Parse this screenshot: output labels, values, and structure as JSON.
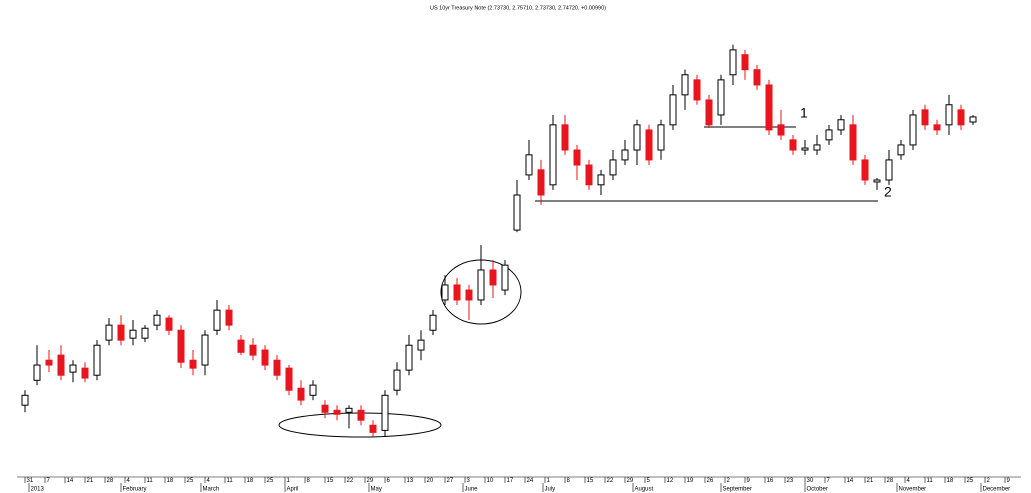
{
  "chart_data": {
    "type": "candlestick",
    "title": "US 10yr Treasury Note (2.73730, 2.75710, 2.73730, 2.74720, +0.00990)",
    "x": [
      0,
      3,
      6,
      9,
      12,
      15,
      18,
      21,
      24,
      27,
      30,
      33,
      36,
      39,
      42,
      45,
      48,
      51,
      54,
      57,
      60,
      63,
      66,
      69,
      72,
      75,
      78,
      81,
      84,
      87,
      90,
      93,
      96,
      99,
      102,
      105,
      108,
      111,
      114,
      117,
      120,
      123,
      126,
      129,
      132,
      135,
      138,
      141,
      144,
      147,
      150,
      153,
      156,
      159,
      162,
      165,
      168,
      171,
      174,
      177,
      180,
      183,
      186,
      189,
      192,
      195,
      198,
      201,
      204,
      207,
      210,
      213,
      216,
      219,
      222,
      225,
      228,
      231,
      234,
      237
    ],
    "open": [
      1.716,
      1.804,
      1.875,
      1.893,
      1.833,
      1.847,
      1.822,
      1.946,
      1.999,
      1.953,
      1.953,
      1.999,
      2.024,
      1.981,
      1.875,
      1.858,
      1.981,
      2.052,
      1.946,
      1.928,
      1.911,
      1.875,
      1.847,
      1.776,
      1.751,
      1.716,
      1.698,
      1.691,
      1.698,
      1.645,
      1.627,
      1.769,
      1.84,
      1.911,
      1.981,
      2.088,
      2.141,
      2.123,
      2.088,
      2.194,
      2.123,
      2.335,
      2.53,
      2.548,
      2.495,
      2.707,
      2.618,
      2.565,
      2.495,
      2.53,
      2.583,
      2.618,
      2.689,
      2.618,
      2.707,
      2.813,
      2.866,
      2.795,
      2.742,
      2.884,
      2.955,
      2.902,
      2.848,
      2.707,
      2.654,
      2.618,
      2.618,
      2.654,
      2.689,
      2.707,
      2.583,
      2.505,
      2.512,
      2.601,
      2.636,
      2.76,
      2.707,
      2.707,
      2.76,
      2.717
    ],
    "high": [
      1.769,
      1.928,
      1.911,
      1.928,
      1.875,
      1.868,
      1.946,
      2.024,
      2.034,
      2.017,
      1.999,
      2.052,
      2.034,
      1.999,
      1.911,
      1.981,
      2.088,
      2.07,
      1.964,
      1.953,
      1.928,
      1.893,
      1.858,
      1.804,
      1.804,
      1.734,
      1.716,
      1.716,
      1.716,
      1.663,
      1.769,
      1.868,
      1.964,
      1.981,
      2.052,
      2.176,
      2.165,
      2.141,
      2.282,
      2.229,
      2.229,
      2.512,
      2.654,
      2.583,
      2.742,
      2.742,
      2.636,
      2.583,
      2.548,
      2.618,
      2.654,
      2.725,
      2.707,
      2.725,
      2.848,
      2.902,
      2.884,
      2.813,
      2.884,
      2.99,
      2.972,
      2.919,
      2.866,
      2.76,
      2.671,
      2.654,
      2.671,
      2.707,
      2.742,
      2.742,
      2.601,
      2.519,
      2.618,
      2.654,
      2.76,
      2.778,
      2.725,
      2.813,
      2.778,
      2.742
    ],
    "low": [
      1.691,
      1.787,
      1.833,
      1.804,
      1.797,
      1.797,
      1.804,
      1.928,
      1.928,
      1.928,
      1.939,
      1.981,
      1.964,
      1.847,
      1.822,
      1.822,
      1.964,
      1.981,
      1.893,
      1.875,
      1.84,
      1.804,
      1.751,
      1.716,
      1.734,
      1.67,
      1.663,
      1.634,
      1.645,
      1.606,
      1.606,
      1.751,
      1.822,
      1.875,
      1.964,
      2.07,
      2.07,
      2.017,
      2.07,
      2.095,
      2.105,
      2.328,
      2.512,
      2.424,
      2.477,
      2.601,
      2.512,
      2.477,
      2.459,
      2.512,
      2.565,
      2.565,
      2.565,
      2.583,
      2.689,
      2.76,
      2.778,
      2.696,
      2.707,
      2.848,
      2.866,
      2.831,
      2.671,
      2.654,
      2.601,
      2.601,
      2.601,
      2.636,
      2.671,
      2.565,
      2.495,
      2.477,
      2.495,
      2.583,
      2.618,
      2.689,
      2.671,
      2.671,
      2.689,
      2.707
    ],
    "close": [
      1.751,
      1.858,
      1.858,
      1.822,
      1.858,
      1.812,
      1.928,
      1.999,
      1.946,
      1.981,
      1.988,
      2.034,
      1.981,
      1.868,
      1.847,
      1.964,
      2.052,
      1.999,
      1.903,
      1.893,
      1.858,
      1.822,
      1.769,
      1.734,
      1.787,
      1.691,
      1.684,
      1.705,
      1.663,
      1.62,
      1.751,
      1.84,
      1.928,
      1.946,
      2.034,
      2.141,
      2.088,
      2.088,
      2.194,
      2.141,
      2.211,
      2.459,
      2.601,
      2.459,
      2.707,
      2.618,
      2.565,
      2.495,
      2.53,
      2.583,
      2.618,
      2.707,
      2.583,
      2.707,
      2.813,
      2.884,
      2.795,
      2.707,
      2.866,
      2.972,
      2.902,
      2.848,
      2.689,
      2.671,
      2.618,
      2.625,
      2.636,
      2.689,
      2.725,
      2.583,
      2.512,
      2.512,
      2.583,
      2.636,
      2.742,
      2.707,
      2.689,
      2.778,
      2.707,
      2.735
    ],
    "up_color": "#000000",
    "down_color": "#e8141e",
    "xlim": [
      -2,
      249
    ],
    "ylim": [
      1.54,
      3.12
    ],
    "xticks": [
      {
        "value": 0,
        "label": "31"
      },
      {
        "value": 5,
        "label": "7"
      },
      {
        "value": 10,
        "label": "14"
      },
      {
        "value": 15,
        "label": "21"
      },
      {
        "value": 20,
        "label": "28"
      },
      {
        "value": 25,
        "label": "4"
      },
      {
        "value": 30,
        "label": "11"
      },
      {
        "value": 35,
        "label": "18"
      },
      {
        "value": 40,
        "label": "25"
      },
      {
        "value": 45,
        "label": "4"
      },
      {
        "value": 50,
        "label": "11"
      },
      {
        "value": 55,
        "label": "18"
      },
      {
        "value": 60,
        "label": "25"
      },
      {
        "value": 65,
        "label": "1"
      },
      {
        "value": 70,
        "label": "8"
      },
      {
        "value": 75,
        "label": "15"
      },
      {
        "value": 80,
        "label": "22"
      },
      {
        "value": 85,
        "label": "29"
      },
      {
        "value": 90,
        "label": "6"
      },
      {
        "value": 95,
        "label": "13"
      },
      {
        "value": 100,
        "label": "20"
      },
      {
        "value": 105,
        "label": "27"
      },
      {
        "value": 110,
        "label": "3"
      },
      {
        "value": 115,
        "label": "10"
      },
      {
        "value": 120,
        "label": "17"
      },
      {
        "value": 125,
        "label": "24"
      },
      {
        "value": 130,
        "label": "1"
      },
      {
        "value": 135,
        "label": "8"
      },
      {
        "value": 140,
        "label": "15"
      },
      {
        "value": 145,
        "label": "22"
      },
      {
        "value": 150,
        "label": "29"
      },
      {
        "value": 155,
        "label": "5"
      },
      {
        "value": 160,
        "label": "12"
      },
      {
        "value": 165,
        "label": "19"
      },
      {
        "value": 170,
        "label": "26"
      },
      {
        "value": 175,
        "label": "2"
      },
      {
        "value": 180,
        "label": "9"
      },
      {
        "value": 185,
        "label": "16"
      },
      {
        "value": 190,
        "label": "23"
      },
      {
        "value": 195,
        "label": "30"
      },
      {
        "value": 200,
        "label": "7"
      },
      {
        "value": 205,
        "label": "14"
      },
      {
        "value": 210,
        "label": "21"
      },
      {
        "value": 215,
        "label": "28"
      },
      {
        "value": 220,
        "label": "4"
      },
      {
        "value": 225,
        "label": "11"
      },
      {
        "value": 230,
        "label": "18"
      },
      {
        "value": 235,
        "label": "25"
      },
      {
        "value": 240,
        "label": "2"
      },
      {
        "value": 245,
        "label": "9"
      }
    ],
    "month_labels": [
      {
        "value": 1,
        "label": "2013"
      },
      {
        "value": 24,
        "label": "February"
      },
      {
        "value": 44,
        "label": "March"
      },
      {
        "value": 65,
        "label": "April"
      },
      {
        "value": 86,
        "label": "May"
      },
      {
        "value": 109.5,
        "label": "June"
      },
      {
        "value": 129.5,
        "label": "July"
      },
      {
        "value": 152,
        "label": "August"
      },
      {
        "value": 174,
        "label": "September"
      },
      {
        "value": 195,
        "label": "October"
      },
      {
        "value": 218,
        "label": "November"
      },
      {
        "value": 239,
        "label": "December"
      }
    ],
    "annotations": [
      "1",
      "2"
    ]
  }
}
